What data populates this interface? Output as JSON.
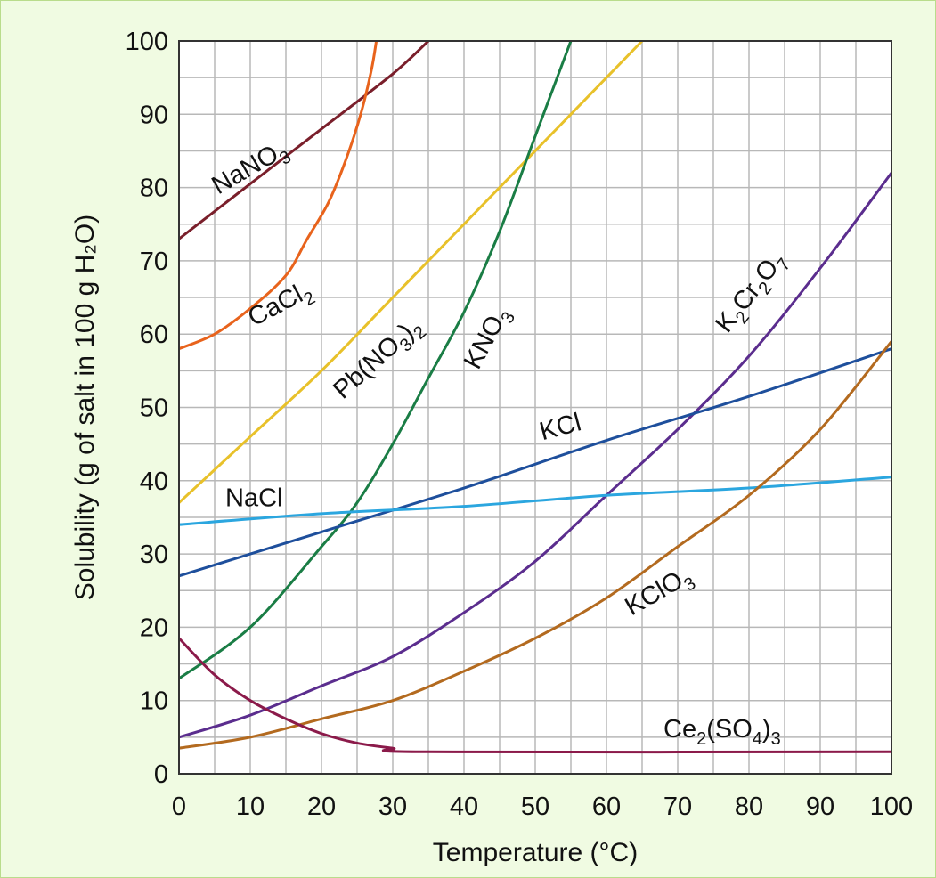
{
  "chart_data": {
    "type": "line",
    "xlabel": "Temperature (°C)",
    "ylabel": "Solubility (g of salt in 100 g H₂O)",
    "xlim": [
      0,
      100
    ],
    "ylim": [
      0,
      100
    ],
    "x_ticks": [
      0,
      10,
      20,
      30,
      40,
      50,
      60,
      70,
      80,
      90,
      100
    ],
    "y_ticks": [
      0,
      10,
      20,
      30,
      40,
      50,
      60,
      70,
      80,
      90,
      100
    ],
    "grid": true,
    "legend": "none (series labeled inline)",
    "series": [
      {
        "name": "NaNO₃",
        "color": "#7a1f2b",
        "points": [
          [
            0,
            73
          ],
          [
            10,
            80.5
          ],
          [
            20,
            88
          ],
          [
            30,
            95.5
          ],
          [
            35,
            100
          ]
        ]
      },
      {
        "name": "CaCl₂",
        "color": "#e8631c",
        "points": [
          [
            0,
            58
          ],
          [
            5,
            60
          ],
          [
            10,
            63.5
          ],
          [
            15,
            68
          ],
          [
            18,
            73
          ],
          [
            21,
            78
          ],
          [
            23.5,
            84
          ],
          [
            25.5,
            90
          ],
          [
            27,
            96
          ],
          [
            27.7,
            100
          ]
        ]
      },
      {
        "name": "Pb(NO₃)₂",
        "color": "#e8c12a",
        "points": [
          [
            0,
            37
          ],
          [
            10,
            46
          ],
          [
            20,
            55
          ],
          [
            30,
            65
          ],
          [
            40,
            75
          ],
          [
            50,
            85
          ],
          [
            60,
            95
          ],
          [
            65,
            100
          ]
        ]
      },
      {
        "name": "KNO₃",
        "color": "#1a7d45",
        "points": [
          [
            0,
            13
          ],
          [
            10,
            20
          ],
          [
            20,
            31
          ],
          [
            25,
            37
          ],
          [
            30,
            45
          ],
          [
            35,
            54
          ],
          [
            40,
            63
          ],
          [
            45,
            74
          ],
          [
            50,
            87
          ],
          [
            55,
            100
          ]
        ]
      },
      {
        "name": "K₂Cr₂O₇",
        "color": "#5b2d8e",
        "points": [
          [
            0,
            5
          ],
          [
            10,
            8
          ],
          [
            20,
            12
          ],
          [
            30,
            16
          ],
          [
            40,
            22
          ],
          [
            50,
            29
          ],
          [
            60,
            38
          ],
          [
            70,
            47
          ],
          [
            80,
            57
          ],
          [
            90,
            69
          ],
          [
            100,
            82
          ]
        ]
      },
      {
        "name": "KCl",
        "color": "#1e4f9c",
        "points": [
          [
            0,
            27
          ],
          [
            20,
            33
          ],
          [
            40,
            39
          ],
          [
            60,
            45.5
          ],
          [
            80,
            51.5
          ],
          [
            100,
            58
          ]
        ]
      },
      {
        "name": "NaCl",
        "color": "#2ba6df",
        "points": [
          [
            0,
            34
          ],
          [
            20,
            35.5
          ],
          [
            40,
            36.5
          ],
          [
            60,
            38
          ],
          [
            80,
            39
          ],
          [
            100,
            40.5
          ]
        ]
      },
      {
        "name": "KClO₃",
        "color": "#b36a1f",
        "points": [
          [
            0,
            3.5
          ],
          [
            10,
            5
          ],
          [
            20,
            7.5
          ],
          [
            30,
            10
          ],
          [
            40,
            14
          ],
          [
            50,
            18.5
          ],
          [
            60,
            24
          ],
          [
            70,
            31
          ],
          [
            80,
            38
          ],
          [
            90,
            47
          ],
          [
            100,
            59
          ]
        ]
      },
      {
        "name": "Ce₂(SO₄)₃",
        "color": "#8b1a4a",
        "points": [
          [
            0,
            18.5
          ],
          [
            5,
            13.5
          ],
          [
            10,
            10
          ],
          [
            15,
            7.5
          ],
          [
            20,
            5.5
          ],
          [
            25,
            4.2
          ],
          [
            30,
            3.5
          ],
          [
            35,
            3
          ],
          [
            100,
            3
          ]
        ]
      }
    ]
  }
}
